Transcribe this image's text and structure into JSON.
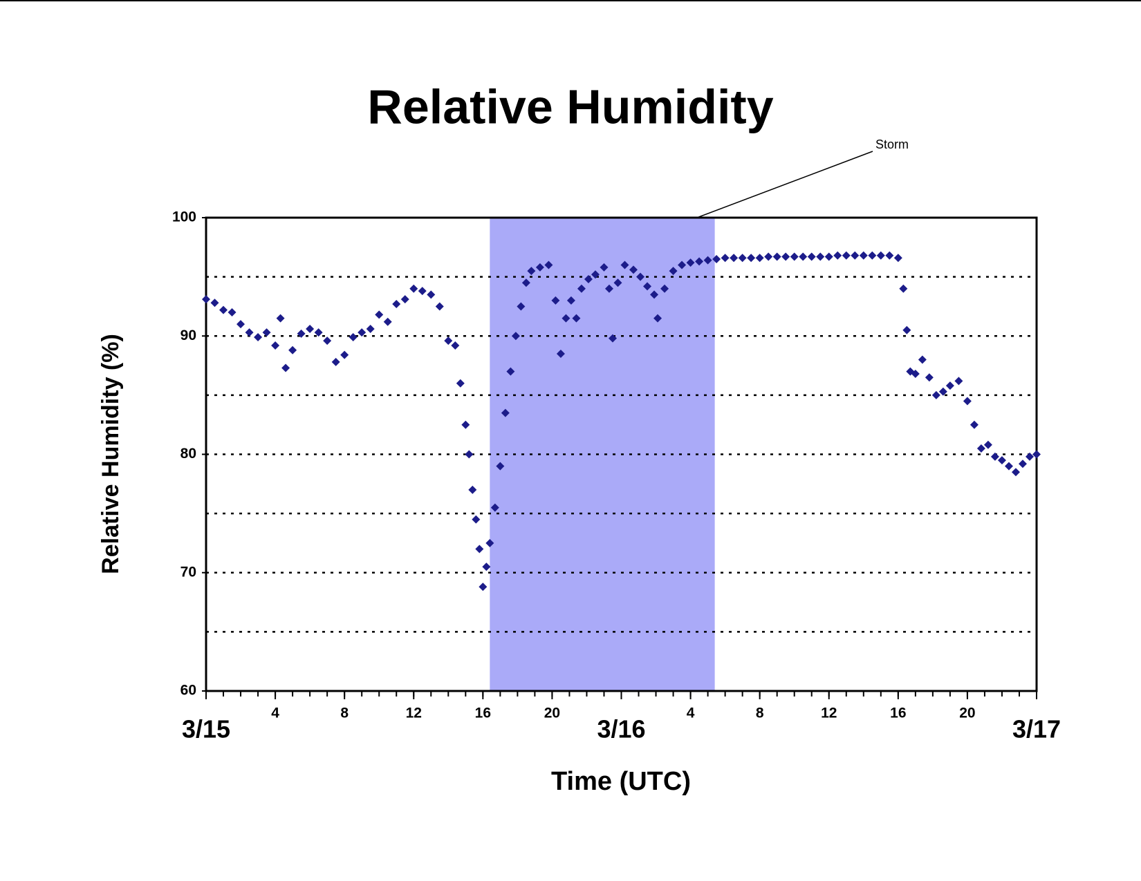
{
  "chart_data": {
    "type": "scatter",
    "title": "Relative Humidity",
    "x_label": "Time (UTC)",
    "y_label": "Relative Humidity (%)",
    "annotation": "Storm",
    "shade": {
      "range": [
        16.4,
        29.4
      ],
      "color": "#aaaaf8"
    },
    "x": [
      0,
      0.5,
      1,
      1.5,
      2,
      2.5,
      3,
      3.5,
      4,
      4.3,
      4.6,
      5,
      5.5,
      6,
      6.5,
      7,
      7.5,
      8,
      8.5,
      9,
      9.5,
      10,
      10.5,
      11,
      11.5,
      12,
      12.5,
      13,
      13.5,
      14,
      14.4,
      14.7,
      15,
      15.2,
      15.4,
      15.6,
      15.8,
      16,
      16.2,
      16.4,
      16.7,
      17,
      17.3,
      17.6,
      17.9,
      18.2,
      18.5,
      18.8,
      19.3,
      19.8,
      20.2,
      20.5,
      20.8,
      21.1,
      21.4,
      21.7,
      22.1,
      22.5,
      23,
      23.3,
      23.5,
      23.8,
      24.2,
      24.7,
      25.1,
      25.5,
      25.9,
      26.1,
      26.5,
      27,
      27.5,
      28,
      28.5,
      29,
      29.5,
      30,
      30.5,
      31,
      31.5,
      32,
      32.5,
      33,
      33.5,
      34,
      34.5,
      35,
      35.5,
      36,
      36.5,
      37,
      37.5,
      38,
      38.5,
      39,
      39.5,
      40,
      40.3,
      40.5,
      40.7,
      41,
      41.4,
      41.8,
      42.2,
      42.6,
      43,
      43.5,
      44,
      44.4,
      44.8,
      45.2,
      45.6,
      46,
      46.4,
      46.8,
      47.2,
      47.6,
      48
    ],
    "series": [
      {
        "name": "Relative Humidity",
        "color": "#1c1c8a",
        "values": [
          93.1,
          92.8,
          92.2,
          92.0,
          91.0,
          90.3,
          89.9,
          90.3,
          89.2,
          91.5,
          87.3,
          88.8,
          90.2,
          90.6,
          90.3,
          89.6,
          87.8,
          88.4,
          89.9,
          90.3,
          90.6,
          91.8,
          91.2,
          92.7,
          93.1,
          94.0,
          93.8,
          93.5,
          92.5,
          89.6,
          89.2,
          86.0,
          82.5,
          80.0,
          77.0,
          74.5,
          72.0,
          68.8,
          70.5,
          72.5,
          75.5,
          79.0,
          83.5,
          87.0,
          90.0,
          92.5,
          94.5,
          95.5,
          95.8,
          96.0,
          93.0,
          88.5,
          91.5,
          93.0,
          91.5,
          94.0,
          94.8,
          95.2,
          95.8,
          94.0,
          89.8,
          94.5,
          96.0,
          95.6,
          95.0,
          94.2,
          93.5,
          91.5,
          94.0,
          95.5,
          96.0,
          96.2,
          96.3,
          96.4,
          96.5,
          96.6,
          96.6,
          96.6,
          96.6,
          96.6,
          96.7,
          96.7,
          96.7,
          96.7,
          96.7,
          96.7,
          96.7,
          96.7,
          96.8,
          96.8,
          96.8,
          96.8,
          96.8,
          96.8,
          96.8,
          96.6,
          94.0,
          90.5,
          87.0,
          86.8,
          88.0,
          86.5,
          85.0,
          85.3,
          85.8,
          86.2,
          84.5,
          82.5,
          80.5,
          80.8,
          79.8,
          79.5,
          79.0,
          78.5,
          79.2,
          79.8,
          80.0
        ]
      }
    ],
    "xlim": [
      0,
      48
    ],
    "ylim": [
      60,
      100
    ],
    "yticks": [
      60,
      70,
      80,
      90,
      100
    ],
    "ygrid": [
      65,
      70,
      75,
      80,
      85,
      90,
      95
    ],
    "xticks": [
      {
        "value": 0,
        "label": "3/15"
      },
      4,
      8,
      12,
      16,
      20,
      {
        "value": 24,
        "label": "3/16"
      },
      {
        "value": 28,
        "label": "4"
      },
      {
        "value": 32,
        "label": "8"
      },
      {
        "value": 36,
        "label": "12"
      },
      {
        "value": 40,
        "label": "16"
      },
      {
        "value": 44,
        "label": "20"
      },
      {
        "value": 48,
        "label": "3/17"
      }
    ],
    "xminorticks": [
      0,
      1,
      2,
      3,
      4,
      5,
      6,
      7,
      8,
      9,
      10,
      11,
      12,
      13,
      14,
      15,
      16,
      17,
      18,
      19,
      20,
      21,
      22,
      23,
      24,
      25,
      26,
      27,
      28,
      29,
      30,
      31,
      32,
      33,
      34,
      35,
      36,
      37,
      38,
      39,
      40,
      41,
      42,
      43,
      44,
      45,
      46,
      47,
      48
    ]
  }
}
